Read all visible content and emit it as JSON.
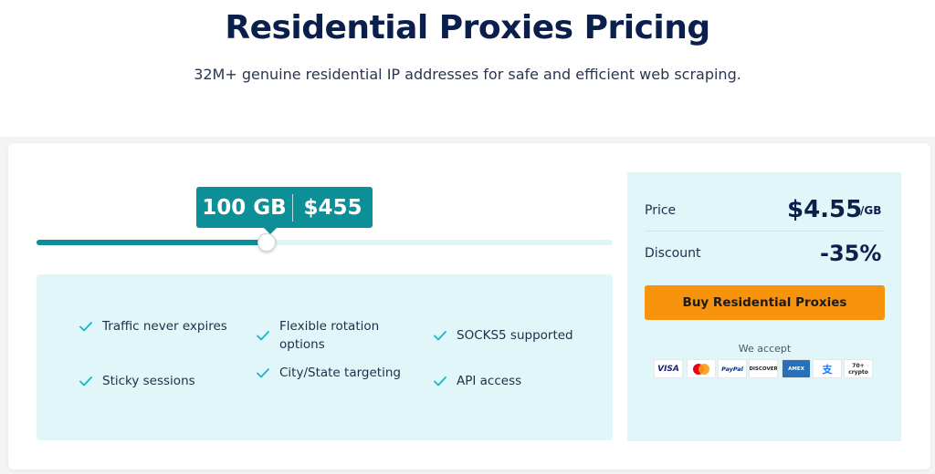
{
  "header": {
    "title": "Residential Proxies Pricing",
    "subtitle": "32M+ genuine residential IP addresses for safe and efficient web scraping."
  },
  "slider": {
    "gb_label": "100 GB",
    "price_label": "$455",
    "position_fraction": 0.4
  },
  "features": [
    {
      "label": "Traffic never expires"
    },
    {
      "label": "Flexible rotation options"
    },
    {
      "label": "SOCKS5 supported"
    },
    {
      "label": "Sticky sessions"
    },
    {
      "label": "City/State targeting"
    },
    {
      "label": "API access"
    }
  ],
  "summary": {
    "price_label": "Price",
    "price_value": "$4.55",
    "price_unit": "/GB",
    "discount_label": "Discount",
    "discount_value": "-35%",
    "buy_label": "Buy Residential Proxies",
    "accept_label": "We accept"
  },
  "payments": [
    {
      "name": "visa-icon",
      "label": "VISA"
    },
    {
      "name": "mastercard-icon",
      "label": ""
    },
    {
      "name": "paypal-icon",
      "label": "PayPal"
    },
    {
      "name": "discover-icon",
      "label": "DISCOVER"
    },
    {
      "name": "amex-icon",
      "label": "AMEX"
    },
    {
      "name": "alipay-icon",
      "label": "支"
    },
    {
      "name": "crypto-icon",
      "label": "70+ crypto"
    }
  ],
  "colors": {
    "accent": "#0d8f98",
    "panel": "#e1f6f8",
    "buy_button": "#f7930c",
    "heading": "#0b1f4d"
  }
}
